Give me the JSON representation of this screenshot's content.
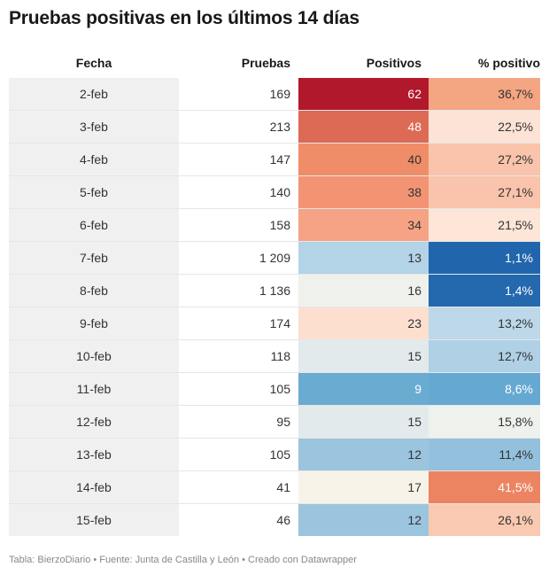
{
  "title": "Pruebas positivas en los últimos 14 días",
  "headers": {
    "fecha": "Fecha",
    "pruebas": "Pruebas",
    "positivos": "Positivos",
    "pct": "% positivo"
  },
  "footer": "Tabla: BierzoDiario • Fuente: Junta de Castilla y León • Creado con Datawrapper",
  "chart_data": {
    "type": "table",
    "columns": [
      "Fecha",
      "Pruebas",
      "Positivos",
      "% positivo"
    ],
    "rows": [
      {
        "fecha": "2-feb",
        "pruebas": "169",
        "positivos": "62",
        "pct": "36,7%",
        "pos_bg": "#b2182b",
        "pos_fg": "#ffffff",
        "pct_bg": "#f4a582",
        "pct_fg": "#333333"
      },
      {
        "fecha": "3-feb",
        "pruebas": "213",
        "positivos": "48",
        "pct": "22,5%",
        "pos_bg": "#dc6a55",
        "pos_fg": "#ffffff",
        "pct_bg": "#fde3d5",
        "pct_fg": "#333333"
      },
      {
        "fecha": "4-feb",
        "pruebas": "147",
        "positivos": "40",
        "pct": "27,2%",
        "pos_bg": "#f08d69",
        "pos_fg": "#333333",
        "pct_bg": "#f9c4ab",
        "pct_fg": "#333333"
      },
      {
        "fecha": "5-feb",
        "pruebas": "140",
        "positivos": "38",
        "pct": "27,1%",
        "pos_bg": "#f29474",
        "pos_fg": "#333333",
        "pct_bg": "#f9c4ab",
        "pct_fg": "#333333"
      },
      {
        "fecha": "6-feb",
        "pruebas": "158",
        "positivos": "34",
        "pct": "21,5%",
        "pos_bg": "#f5a384",
        "pos_fg": "#333333",
        "pct_bg": "#fde5d8",
        "pct_fg": "#333333"
      },
      {
        "fecha": "7-feb",
        "pruebas": "1 209",
        "positivos": "13",
        "pct": "1,1%",
        "pos_bg": "#b3d3e7",
        "pos_fg": "#333333",
        "pct_bg": "#2166ac",
        "pct_fg": "#ffffff"
      },
      {
        "fecha": "8-feb",
        "pruebas": "1 136",
        "positivos": "16",
        "pct": "1,4%",
        "pos_bg": "#eff1ec",
        "pos_fg": "#333333",
        "pct_bg": "#2468ae",
        "pct_fg": "#ffffff"
      },
      {
        "fecha": "9-feb",
        "pruebas": "174",
        "positivos": "23",
        "pct": "13,2%",
        "pos_bg": "#fcdfcf",
        "pos_fg": "#333333",
        "pct_bg": "#bcd8e9",
        "pct_fg": "#333333"
      },
      {
        "fecha": "10-feb",
        "pruebas": "118",
        "positivos": "15",
        "pct": "12,7%",
        "pos_bg": "#e2eaec",
        "pos_fg": "#333333",
        "pct_bg": "#afd0e5",
        "pct_fg": "#333333"
      },
      {
        "fecha": "11-feb",
        "pruebas": "105",
        "positivos": "9",
        "pct": "8,6%",
        "pos_bg": "#6aabd2",
        "pos_fg": "#ffffff",
        "pct_bg": "#65a8d1",
        "pct_fg": "#ffffff"
      },
      {
        "fecha": "12-feb",
        "pruebas": "95",
        "positivos": "15",
        "pct": "15,8%",
        "pos_bg": "#e2eaec",
        "pos_fg": "#333333",
        "pct_bg": "#eef1ec",
        "pct_fg": "#333333"
      },
      {
        "fecha": "13-feb",
        "pruebas": "105",
        "positivos": "12",
        "pct": "11,4%",
        "pos_bg": "#9bc4df",
        "pos_fg": "#333333",
        "pct_bg": "#93c0dd",
        "pct_fg": "#333333"
      },
      {
        "fecha": "14-feb",
        "pruebas": "41",
        "positivos": "17",
        "pct": "41,5%",
        "pos_bg": "#f8f3e8",
        "pos_fg": "#333333",
        "pct_bg": "#ec8462",
        "pct_fg": "#ffffff"
      },
      {
        "fecha": "15-feb",
        "pruebas": "46",
        "positivos": "12",
        "pct": "26,1%",
        "pos_bg": "#9bc4df",
        "pos_fg": "#333333",
        "pct_bg": "#fac9b1",
        "pct_fg": "#333333"
      }
    ]
  }
}
